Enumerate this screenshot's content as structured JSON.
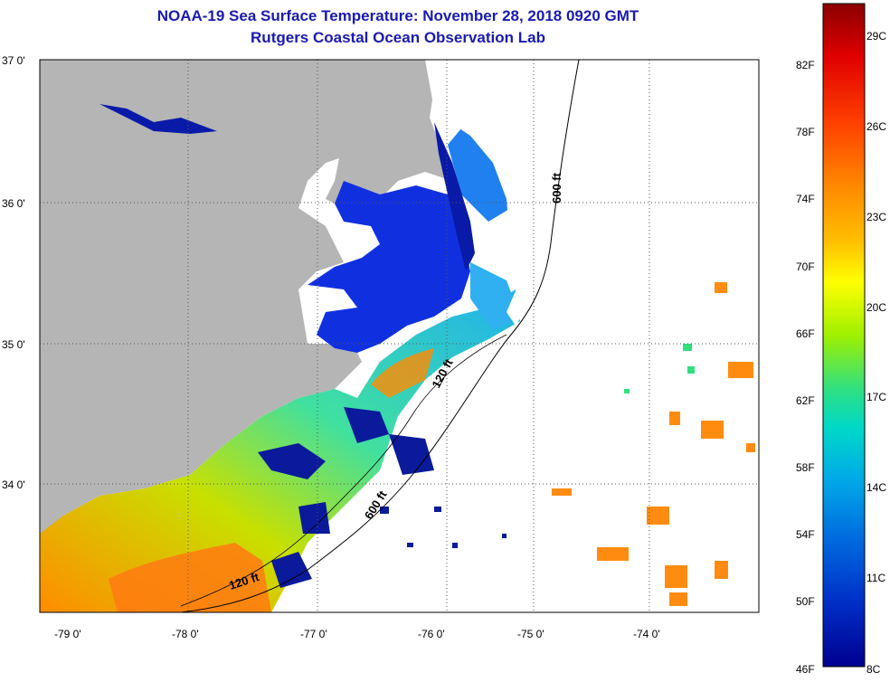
{
  "title": "NOAA-19 Sea Surface Temperature:  November 28, 2018 0920 GMT",
  "subtitle": "Rutgers Coastal Ocean Observation Lab",
  "lat_labels": [
    "37 0'",
    "36 0'",
    "35 0'",
    "34 0'"
  ],
  "lon_labels": [
    "-79 0'",
    "-78 0'",
    "-77 0'",
    "-76 0'",
    "-75 0'",
    "-74 0'"
  ],
  "depth_labels": [
    "600 ft",
    "120 ft",
    "600 ft",
    "120 ft"
  ],
  "colorbar": {
    "f_labels": [
      "82F",
      "78F",
      "74F",
      "70F",
      "66F",
      "62F",
      "58F",
      "54F",
      "50F",
      "46F"
    ],
    "c_labels": [
      "29C",
      "26C",
      "23C",
      "20C",
      "17C",
      "14C",
      "11C",
      "8C"
    ],
    "colors": [
      "#8b0000",
      "#e00000",
      "#ff4000",
      "#ff8c00",
      "#ffc000",
      "#ffff00",
      "#a0f000",
      "#30e080",
      "#00d8c8",
      "#00a8e8",
      "#0070e0",
      "#0030c8",
      "#000090"
    ]
  },
  "colors": {
    "land": "#b5b5b5",
    "title": "#1a1ab0",
    "sound": "#1030e0"
  }
}
